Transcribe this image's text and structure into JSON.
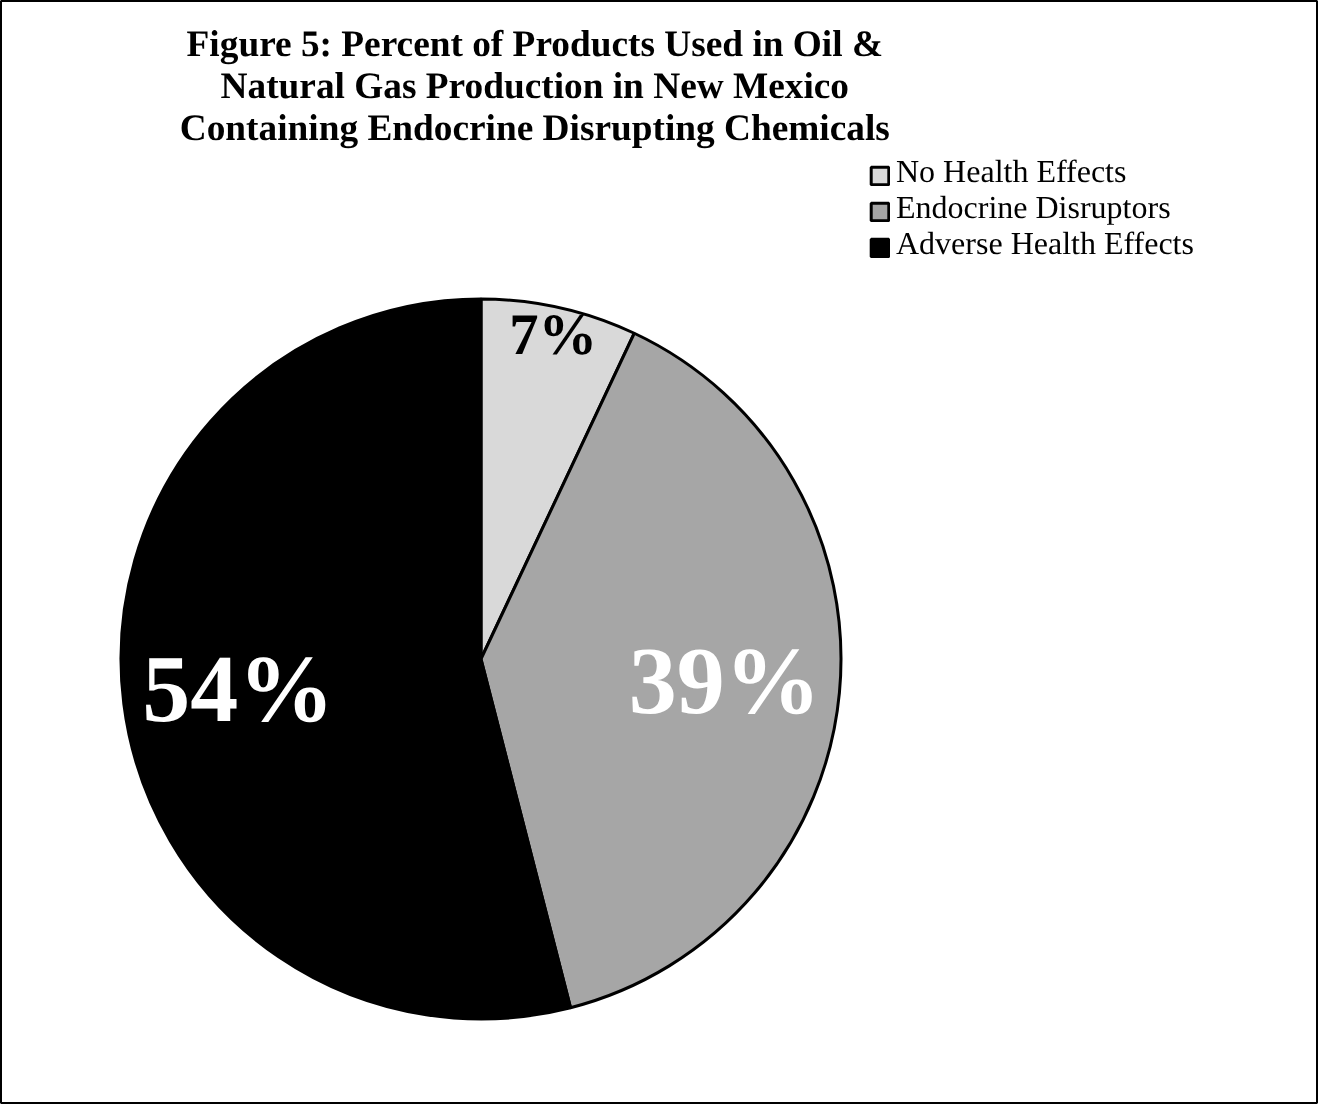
{
  "chart_data": {
    "type": "pie",
    "title": "Figure 5: Percent of Products Used in Oil &\nNatural Gas Production in New Mexico\nContaining Endocrine Disrupting Chemicals",
    "categories": [
      "No Health Effects",
      "Endocrine Disruptors",
      "Adverse Health Effects"
    ],
    "values": [
      7,
      39,
      54
    ],
    "colors": [
      "#d9d9d9",
      "#a6a6a6",
      "#000000"
    ],
    "value_labels": [
      "7%",
      "39%",
      "54%"
    ],
    "legend": "top right"
  }
}
